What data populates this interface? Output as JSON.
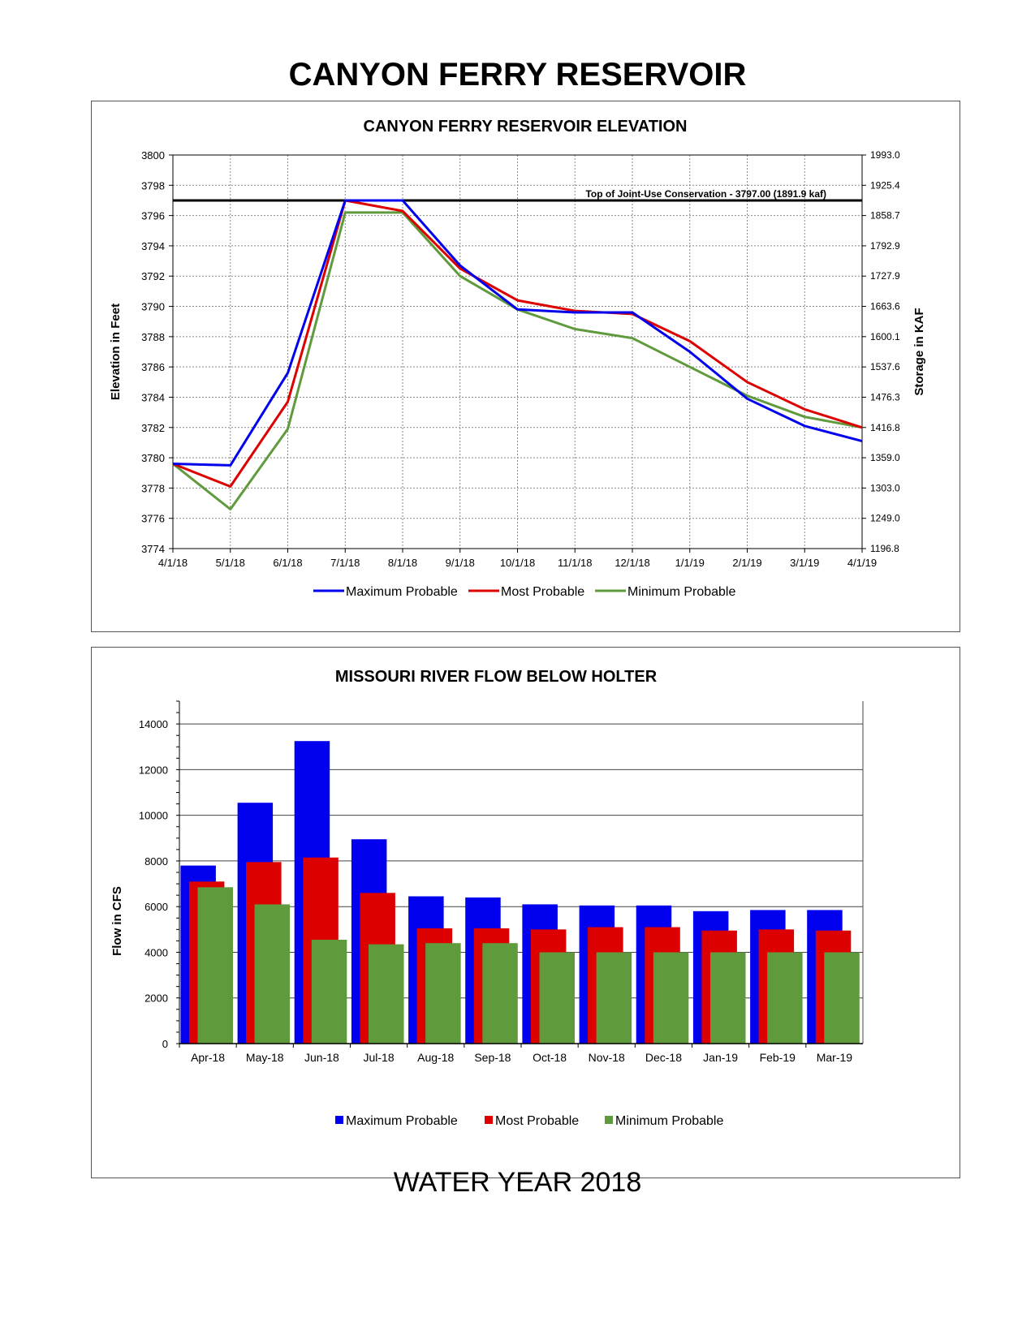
{
  "page": {
    "title": "CANYON FERRY RESERVOIR",
    "footer": "WATER YEAR 2018"
  },
  "colors": {
    "max": "#0000ee",
    "most": "#dd0000",
    "min": "#5f9a3c",
    "target_line": "#000000"
  },
  "chart_data": [
    {
      "type": "line",
      "title": "CANYON FERRY RESERVOIR ELEVATION",
      "ylabel": "Elevation in Feet",
      "y2label": "Storage in KAF",
      "x": [
        "4/1/18",
        "5/1/18",
        "6/1/18",
        "7/1/18",
        "8/1/18",
        "9/1/18",
        "10/1/18",
        "11/1/18",
        "12/1/18",
        "1/1/19",
        "2/1/19",
        "3/1/19",
        "4/1/19"
      ],
      "ylim": [
        3774,
        3800
      ],
      "yticks": [
        3774,
        3776,
        3778,
        3780,
        3782,
        3784,
        3786,
        3788,
        3790,
        3792,
        3794,
        3796,
        3798,
        3800
      ],
      "y2ticks": [
        "1196.8",
        "1249.0",
        "1303.0",
        "1359.0",
        "1416.8",
        "1476.3",
        "1537.6",
        "1600.1",
        "1663.6",
        "1727.9",
        "1792.9",
        "1858.7",
        "1925.4",
        "1993.0"
      ],
      "grid": true,
      "legend_position": "bottom",
      "reference_line": {
        "value": 3797,
        "label": "Top of Joint-Use Conservation - 3797.00 (1891.9 kaf)"
      },
      "series": [
        {
          "name": "Maximum Probable",
          "color": "#0000ee",
          "values": [
            3779.6,
            3779.5,
            3785.6,
            3797.0,
            3797.0,
            3792.7,
            3789.8,
            3789.6,
            3789.6,
            3787.0,
            3783.9,
            3782.1,
            3781.1
          ]
        },
        {
          "name": "Most Probable",
          "color": "#dd0000",
          "values": [
            3779.6,
            3778.1,
            3783.7,
            3797.0,
            3796.3,
            3792.5,
            3790.4,
            3789.7,
            3789.5,
            3787.7,
            3785.0,
            3783.2,
            3782.0
          ]
        },
        {
          "name": "Minimum Probable",
          "color": "#5f9a3c",
          "values": [
            3779.6,
            3776.6,
            3781.9,
            3796.2,
            3796.2,
            3792.0,
            3789.8,
            3788.5,
            3787.9,
            3786.0,
            3784.1,
            3782.7,
            3782.0
          ]
        }
      ]
    },
    {
      "type": "bar",
      "title": "MISSOURI RIVER FLOW BELOW HOLTER",
      "ylabel": "Flow in CFS",
      "categories": [
        "Apr-18",
        "May-18",
        "Jun-18",
        "Jul-18",
        "Aug-18",
        "Sep-18",
        "Oct-18",
        "Nov-18",
        "Dec-18",
        "Jan-19",
        "Feb-19",
        "Mar-19"
      ],
      "ylim": [
        0,
        15000
      ],
      "yticks": [
        0,
        2000,
        4000,
        6000,
        8000,
        10000,
        12000,
        14000
      ],
      "grid": true,
      "legend_position": "bottom",
      "series": [
        {
          "name": "Maximum Probable",
          "color": "#0000ee",
          "values": [
            7800,
            10550,
            13250,
            8950,
            6450,
            6400,
            6100,
            6050,
            6050,
            5800,
            5850,
            5850
          ]
        },
        {
          "name": "Most Probable",
          "color": "#dd0000",
          "values": [
            7100,
            7950,
            8150,
            6600,
            5050,
            5050,
            5000,
            5100,
            5100,
            4950,
            5000,
            4950
          ]
        },
        {
          "name": "Minimum Probable",
          "color": "#5f9a3c",
          "values": [
            6850,
            6100,
            4550,
            4350,
            4400,
            4400,
            4000,
            4000,
            4000,
            4000,
            4000,
            4000
          ]
        }
      ]
    }
  ]
}
